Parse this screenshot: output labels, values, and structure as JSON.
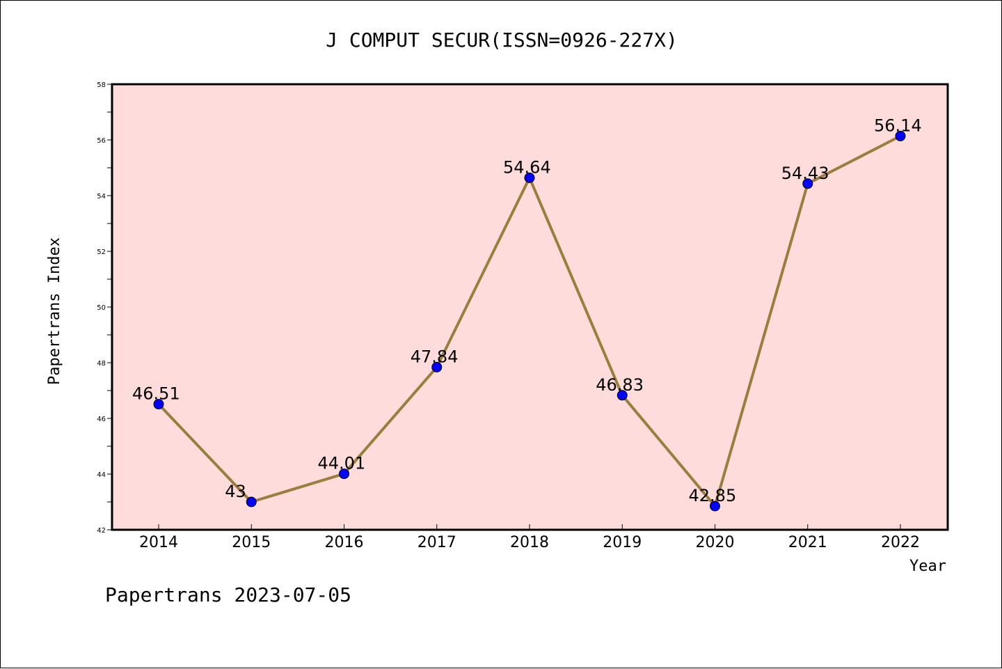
{
  "chart_data": {
    "type": "line",
    "title": "J COMPUT SECUR(ISSN=0926-227X)",
    "xlabel": "Year",
    "ylabel": "Papertrans Index",
    "categories": [
      "2014",
      "2015",
      "2016",
      "2017",
      "2018",
      "2019",
      "2020",
      "2021",
      "2022"
    ],
    "values": [
      46.51,
      43,
      44.01,
      47.84,
      54.64,
      46.83,
      42.85,
      54.43,
      56.14
    ],
    "data_labels": [
      "46.51",
      "43",
      "44.01",
      "47.84",
      "54.64",
      "46.83",
      "42.85",
      "54.43",
      "56.14"
    ],
    "ylim": [
      42,
      58
    ],
    "yticks": [
      42,
      44,
      46,
      48,
      50,
      52,
      54,
      56,
      58
    ],
    "grid": false,
    "colors": {
      "plot_background": "#ffdcdc",
      "line": "#9b7d3c",
      "marker": "#0000ff"
    }
  },
  "footer": "Papertrans 2023-07-05"
}
